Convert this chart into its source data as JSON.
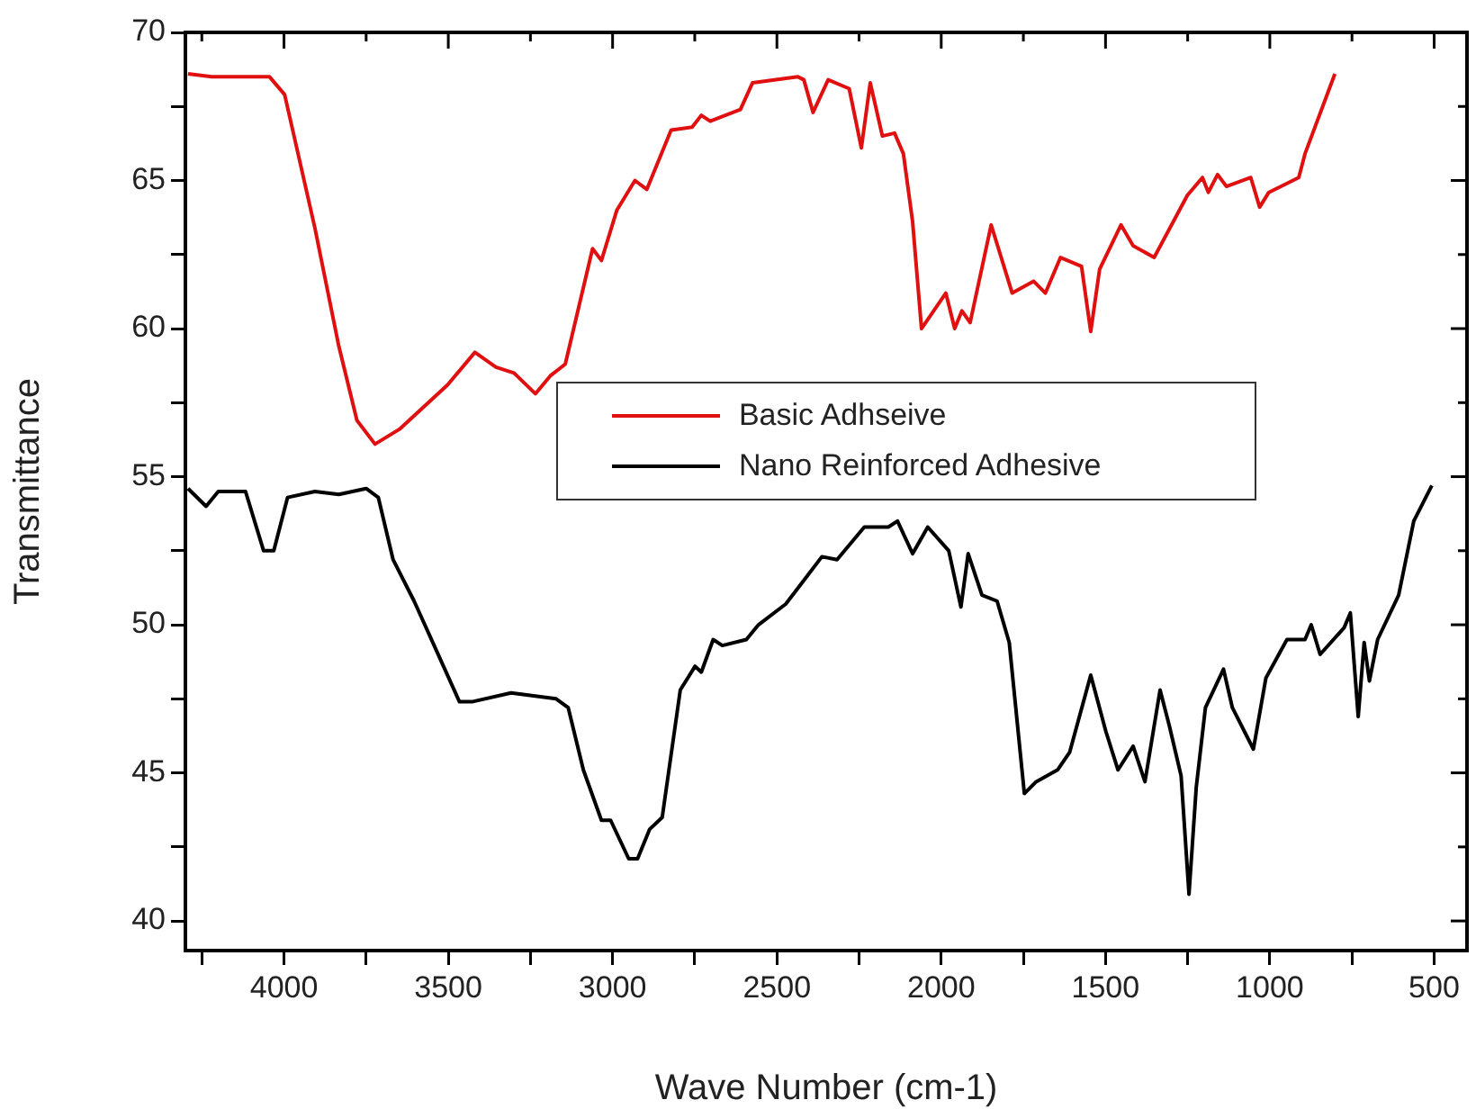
{
  "chart_data": {
    "type": "line",
    "xlabel": "Wave Number (cm-1)",
    "ylabel": "Transmittance",
    "xlim": [
      4300,
      400
    ],
    "xticks": [
      {
        "value": 4250,
        "label": null
      },
      4000,
      {
        "value": 3750,
        "label": null
      },
      3500,
      {
        "value": 3250,
        "label": null
      },
      3000,
      {
        "value": 2750,
        "label": null
      },
      2500,
      {
        "value": 2250,
        "label": null
      },
      2000,
      {
        "value": 1750,
        "label": null
      },
      1500,
      {
        "value": 1250,
        "label": null
      },
      1000,
      {
        "value": 750,
        "label": null
      },
      500
    ],
    "ylim": [
      39,
      70
    ],
    "yticks": [
      40,
      {
        "value": 42.5,
        "label": null
      },
      45,
      {
        "value": 47.5,
        "label": null
      },
      50,
      {
        "value": 52.5,
        "label": null
      },
      55,
      {
        "value": 57.5,
        "label": null
      },
      60,
      {
        "value": 62.5,
        "label": null
      },
      65,
      {
        "value": 67.5,
        "label": null
      },
      70
    ],
    "grid": false,
    "legend": "center",
    "marker": "none",
    "line_style": "solid",
    "series": [
      {
        "name": "Basic Adhseive",
        "color": "#e01010",
        "x": [
          4292,
          4220,
          4044,
          3998,
          3906,
          3833,
          3778,
          3723,
          3649,
          3502,
          3419,
          3355,
          3300,
          3235,
          3190,
          3144,
          3061,
          3034,
          2987,
          2932,
          2896,
          2822,
          2758,
          2730,
          2703,
          2611,
          2574,
          2436,
          2418,
          2390,
          2344,
          2280,
          2243,
          2216,
          2179,
          2142,
          2115,
          2087,
          2060,
          1986,
          1959,
          1937,
          1912,
          1848,
          1784,
          1719,
          1683,
          1637,
          1573,
          1545,
          1518,
          1453,
          1416,
          1352,
          1251,
          1205,
          1187,
          1159,
          1132,
          1058,
          1031,
          1003,
          912,
          893,
          802
        ],
        "values": [
          68.6,
          68.5,
          68.5,
          67.9,
          63.4,
          59.4,
          56.9,
          56.1,
          56.6,
          58.1,
          59.2,
          58.7,
          58.5,
          57.8,
          58.4,
          58.8,
          62.7,
          62.3,
          64.0,
          65.0,
          64.7,
          66.7,
          66.8,
          67.2,
          67.0,
          67.4,
          68.3,
          68.5,
          68.4,
          67.3,
          68.4,
          68.1,
          66.1,
          68.3,
          66.5,
          66.6,
          65.9,
          63.6,
          60.0,
          61.2,
          60.0,
          60.6,
          60.2,
          63.5,
          61.2,
          61.6,
          61.2,
          62.4,
          62.1,
          59.9,
          62.0,
          63.5,
          62.8,
          62.4,
          64.5,
          65.1,
          64.6,
          65.2,
          64.8,
          65.1,
          64.1,
          64.6,
          65.1,
          65.9,
          68.6
        ]
      },
      {
        "name": "Nano Reinforced Adhesive",
        "color": "#000000",
        "x": [
          4292,
          4237,
          4200,
          4117,
          4062,
          4031,
          3989,
          3906,
          3833,
          3750,
          3713,
          3668,
          3604,
          3539,
          3466,
          3428,
          3309,
          3172,
          3135,
          3089,
          3034,
          3006,
          2951,
          2924,
          2887,
          2849,
          2794,
          2749,
          2730,
          2694,
          2666,
          2593,
          2556,
          2473,
          2418,
          2363,
          2317,
          2234,
          2161,
          2133,
          2087,
          2041,
          1977,
          1940,
          1918,
          1876,
          1830,
          1793,
          1747,
          1711,
          1646,
          1609,
          1545,
          1499,
          1462,
          1416,
          1380,
          1334,
          1306,
          1270,
          1246,
          1224,
          1196,
          1141,
          1114,
          1050,
          1012,
          948,
          893,
          874,
          847,
          774,
          755,
          731,
          713,
          697,
          672,
          608,
          562,
          507
        ],
        "values": [
          54.6,
          54.0,
          54.5,
          54.5,
          52.5,
          52.5,
          54.3,
          54.5,
          54.4,
          54.6,
          54.3,
          52.2,
          50.8,
          49.2,
          47.4,
          47.4,
          47.7,
          47.5,
          47.2,
          45.1,
          43.4,
          43.4,
          42.1,
          42.1,
          43.1,
          43.5,
          47.8,
          48.6,
          48.4,
          49.5,
          49.3,
          49.5,
          50.0,
          50.7,
          51.5,
          52.3,
          52.2,
          53.3,
          53.3,
          53.5,
          52.4,
          53.3,
          52.5,
          50.6,
          52.4,
          51.0,
          50.8,
          49.4,
          44.3,
          44.7,
          45.1,
          45.7,
          48.3,
          46.4,
          45.1,
          45.9,
          44.7,
          47.8,
          46.6,
          44.9,
          40.9,
          44.5,
          47.2,
          48.5,
          47.2,
          45.8,
          48.2,
          49.5,
          49.5,
          50.0,
          49.0,
          49.9,
          50.4,
          46.9,
          49.4,
          48.1,
          49.5,
          51.0,
          53.5,
          54.7
        ]
      }
    ]
  }
}
